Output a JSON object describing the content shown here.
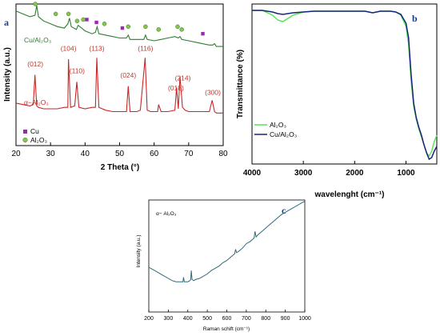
{
  "chart_data": [
    {
      "panel": "a",
      "type": "line",
      "xlabel": "2 Theta (°)",
      "ylabel": "Intensity (a.u.)",
      "xlim": [
        20,
        80
      ],
      "xticks": [
        20,
        30,
        40,
        50,
        60,
        70,
        80
      ],
      "grid": false,
      "colors": {
        "cu_al2o3": "#2e7d32",
        "alpha_al2o3": "#c62828",
        "cu_marker": "#9c27b0",
        "al2o3_marker": "#8bc34a"
      },
      "series": [
        {
          "name": "Cu/Al₂O₃",
          "x": [
            20,
            22,
            24,
            25.5,
            26,
            26.5,
            28,
            30,
            32,
            34,
            35,
            35.5,
            36,
            37.5,
            38,
            40,
            42,
            43,
            43.5,
            44,
            46,
            48,
            50,
            52,
            52.5,
            53,
            55,
            57,
            57.5,
            58,
            60,
            62,
            64,
            66,
            67,
            67.5,
            68,
            70,
            72,
            74,
            76,
            77,
            77.5,
            78,
            80
          ],
          "y": [
            0.95,
            0.93,
            0.91,
            0.92,
            0.99,
            0.91,
            0.88,
            0.86,
            0.84,
            0.83,
            0.86,
            0.9,
            0.84,
            0.82,
            0.85,
            0.81,
            0.79,
            0.8,
            0.84,
            0.79,
            0.78,
            0.77,
            0.76,
            0.76,
            0.78,
            0.75,
            0.75,
            0.75,
            0.78,
            0.75,
            0.74,
            0.75,
            0.76,
            0.77,
            0.76,
            0.77,
            0.75,
            0.74,
            0.73,
            0.72,
            0.71,
            0.71,
            0.72,
            0.7,
            0.7
          ]
        },
        {
          "name": "α−Al₂O₃",
          "x": [
            20,
            22,
            24,
            25,
            25.5,
            26,
            26.5,
            28,
            30,
            32,
            34,
            35,
            35.2,
            35.8,
            37,
            37.6,
            38.2,
            40,
            42,
            43,
            43.4,
            44,
            46,
            48,
            50,
            52,
            52.5,
            53,
            55,
            56,
            57.4,
            58,
            59,
            61,
            61.3,
            62,
            64,
            66,
            66.5,
            67,
            67.5,
            68.2,
            69,
            70,
            72,
            74,
            76,
            76.8,
            77.5,
            78,
            80
          ],
          "y": [
            0.3,
            0.29,
            0.28,
            0.29,
            0.5,
            0.28,
            0.27,
            0.26,
            0.26,
            0.26,
            0.27,
            0.27,
            0.61,
            0.27,
            0.28,
            0.45,
            0.27,
            0.26,
            0.27,
            0.27,
            0.62,
            0.27,
            0.25,
            0.24,
            0.24,
            0.24,
            0.42,
            0.24,
            0.24,
            0.25,
            0.62,
            0.25,
            0.24,
            0.24,
            0.29,
            0.24,
            0.24,
            0.25,
            0.41,
            0.26,
            0.49,
            0.27,
            0.25,
            0.24,
            0.24,
            0.24,
            0.24,
            0.32,
            0.24,
            0.23,
            0.23
          ]
        }
      ],
      "annotations": [
        {
          "text": "(012)",
          "x": 25.6,
          "y": 0.56
        },
        {
          "text": "(104)",
          "x": 35.2,
          "y": 0.67
        },
        {
          "text": "(110)",
          "x": 37.7,
          "y": 0.51
        },
        {
          "text": "(113)",
          "x": 43.4,
          "y": 0.67
        },
        {
          "text": "(024)",
          "x": 52.5,
          "y": 0.48
        },
        {
          "text": "(116)",
          "x": 57.5,
          "y": 0.67
        },
        {
          "text": "(018)",
          "x": 66.3,
          "y": 0.39
        },
        {
          "text": "(214)",
          "x": 68.3,
          "y": 0.46
        },
        {
          "text": "(300)",
          "x": 77.0,
          "y": 0.36
        }
      ],
      "markers_cu": [
        {
          "x": 40.5,
          "y": 0.89
        },
        {
          "x": 43.3,
          "y": 0.87
        },
        {
          "x": 50.8,
          "y": 0.83
        },
        {
          "x": 74.1,
          "y": 0.79
        }
      ],
      "markers_al2o3": [
        {
          "x": 25.6,
          "y": 1.0
        },
        {
          "x": 31.5,
          "y": 0.93
        },
        {
          "x": 35.2,
          "y": 0.93
        },
        {
          "x": 37.7,
          "y": 0.88
        },
        {
          "x": 39.5,
          "y": 0.89
        },
        {
          "x": 45.6,
          "y": 0.86
        },
        {
          "x": 52.5,
          "y": 0.84
        },
        {
          "x": 57.5,
          "y": 0.84
        },
        {
          "x": 61.3,
          "y": 0.82
        },
        {
          "x": 66.8,
          "y": 0.84
        },
        {
          "x": 68.0,
          "y": 0.82
        }
      ],
      "legend": [
        {
          "label": "Cu",
          "marker": "square"
        },
        {
          "label": "Al₂O₃",
          "marker": "circle"
        }
      ],
      "legend_placement": "left-middle"
    },
    {
      "panel": "b",
      "type": "line",
      "xlabel": "wavelenght",
      "xlabel_unit": "(cm⁻¹)",
      "ylabel": "Transmittance (%)",
      "xlim": [
        4000,
        400
      ],
      "xticks": [
        4000,
        3000,
        2000,
        1000
      ],
      "ylim": [
        0,
        100
      ],
      "grid": false,
      "series": [
        {
          "name": "Al₂O₃",
          "color": "#5be35b",
          "x": [
            4000,
            3800,
            3600,
            3500,
            3400,
            3200,
            3000,
            2800,
            2500,
            2200,
            2000,
            1800,
            1650,
            1500,
            1300,
            1200,
            1100,
            1000,
            950,
            900,
            850,
            800,
            750,
            700,
            650,
            600,
            550,
            500,
            450,
            400
          ],
          "y": [
            96,
            96,
            93,
            90,
            89,
            93,
            95,
            95.5,
            95.5,
            95.5,
            95.5,
            95.5,
            94.5,
            95.5,
            95.5,
            95,
            93,
            86,
            75,
            52,
            36,
            28,
            22,
            17,
            12,
            7,
            5,
            8,
            14,
            18
          ]
        },
        {
          "name": "Cu/Al₂O₃",
          "color": "#1a237e",
          "x": [
            4000,
            3800,
            3600,
            3500,
            3400,
            3200,
            3000,
            2800,
            2500,
            2200,
            2000,
            1800,
            1650,
            1500,
            1300,
            1200,
            1100,
            1000,
            950,
            900,
            850,
            800,
            750,
            700,
            650,
            600,
            550,
            500,
            450,
            400
          ],
          "y": [
            96,
            96,
            95,
            94,
            93.5,
            94.5,
            95,
            95.5,
            95.5,
            95.5,
            95.5,
            95.5,
            94.5,
            95.5,
            95.5,
            95,
            93.5,
            88,
            79,
            56,
            38,
            29,
            23,
            18,
            12,
            7,
            3,
            4,
            8,
            11
          ]
        }
      ],
      "legend_placement": "bottom-left"
    },
    {
      "panel": "c",
      "type": "line",
      "xlabel": "Raman schift",
      "xlabel_unit": "(cm⁻¹)",
      "ylabel": "Intensity (a.u.)",
      "xlim": [
        200,
        1000
      ],
      "xticks": [
        200,
        300,
        400,
        500,
        600,
        700,
        800,
        900,
        1000
      ],
      "grid": false,
      "series": [
        {
          "name": "α− Al₂O₃",
          "color": "#2e6b7a",
          "x": [
            200,
            220,
            240,
            260,
            280,
            300,
            320,
            340,
            360,
            375,
            378,
            382,
            400,
            410,
            415,
            418,
            422,
            430,
            440,
            460,
            480,
            500,
            520,
            540,
            560,
            580,
            600,
            620,
            640,
            645,
            650,
            660,
            680,
            700,
            720,
            740,
            745,
            750,
            760,
            780,
            800,
            820,
            840,
            860,
            880,
            900,
            920,
            940,
            960,
            980,
            1000
          ],
          "y": [
            0.4,
            0.38,
            0.36,
            0.34,
            0.32,
            0.3,
            0.28,
            0.27,
            0.27,
            0.27,
            0.31,
            0.27,
            0.27,
            0.28,
            0.29,
            0.37,
            0.29,
            0.28,
            0.29,
            0.3,
            0.32,
            0.34,
            0.37,
            0.39,
            0.41,
            0.44,
            0.46,
            0.49,
            0.52,
            0.56,
            0.53,
            0.54,
            0.57,
            0.61,
            0.63,
            0.66,
            0.72,
            0.67,
            0.69,
            0.72,
            0.75,
            0.78,
            0.81,
            0.84,
            0.87,
            0.89,
            0.91,
            0.93,
            0.95,
            0.97,
            0.99
          ]
        }
      ]
    }
  ],
  "texts": {
    "a_letter": "a",
    "a_xlabel": "2 Theta (°)",
    "a_ylabel": "Intensity (a.u.)",
    "a_series1": "Cu/Al₂O₃",
    "a_series2": "α−Al₂O₃",
    "a_leg_cu": "Cu",
    "a_leg_al": "Al₂O₃",
    "b_letter": "b",
    "b_xlabel": "wavelenght  (cm⁻¹)",
    "b_ylabel": "Transmittance (%)",
    "b_leg1": "Al₂O₃",
    "b_leg2": "Cu/Al₂O₃",
    "c_letter": "c",
    "c_xlabel": "Raman schift (cm⁻¹)",
    "c_ylabel": "Intensity (a.u.)",
    "c_series": "α− Al₂O₃"
  }
}
